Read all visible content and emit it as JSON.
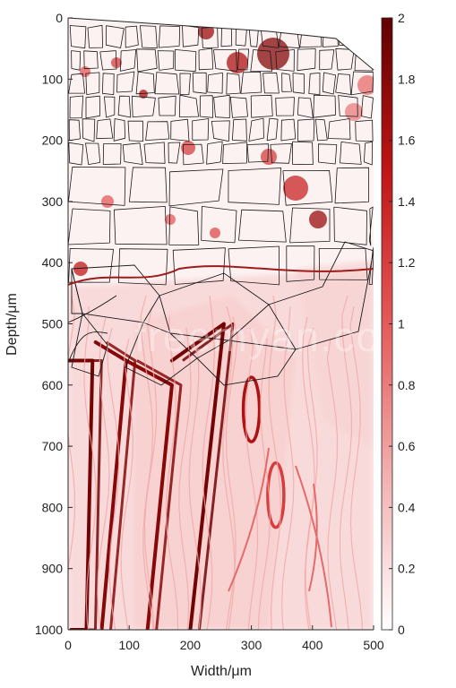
{
  "chart_data": {
    "type": "heatmap",
    "title": "",
    "xlabel": "Width/μm",
    "ylabel": "Depth/μm",
    "xlim": [
      0,
      500
    ],
    "ylim": [
      0,
      1000
    ],
    "y_reversed": true,
    "x_ticks": [
      0,
      100,
      200,
      300,
      400,
      500
    ],
    "y_ticks": [
      0,
      100,
      200,
      300,
      400,
      500,
      600,
      700,
      800,
      900,
      1000
    ],
    "colorbar": {
      "min": 0,
      "max": 2,
      "ticks": [
        0,
        0.2,
        0.4,
        0.6,
        0.8,
        1,
        1.2,
        1.4,
        1.6,
        1.8,
        2
      ],
      "colors": [
        "#ffffff",
        "#f2b0b0",
        "#e55a5a",
        "#c01515",
        "#600000"
      ]
    },
    "grain_boundary_region_depth": [
      0,
      450
    ],
    "features": [
      {
        "kind": "band",
        "x": [
          0,
          40,
          30,
          5
        ],
        "y": [
          560,
          560,
          1000,
          1000
        ],
        "level": 1.9
      },
      {
        "kind": "band",
        "x": [
          45,
          95,
          55
        ],
        "y": [
          530,
          560,
          1000
        ],
        "level": 1.8
      },
      {
        "kind": "band",
        "x": [
          95,
          170,
          130
        ],
        "y": [
          560,
          600,
          1000
        ],
        "level": 1.8
      },
      {
        "kind": "band",
        "x": [
          170,
          255,
          200
        ],
        "y": [
          560,
          500,
          1000
        ],
        "level": 1.9
      },
      {
        "kind": "loop",
        "cx": 300,
        "cy": 640,
        "level": 1.6
      },
      {
        "kind": "loop",
        "cx": 340,
        "cy": 780,
        "level": 1.2
      }
    ]
  },
  "watermark": "freemyan.com",
  "colors": {
    "axis": "#262626",
    "boundary": "#1a1a1a",
    "background": "#ffffff"
  }
}
